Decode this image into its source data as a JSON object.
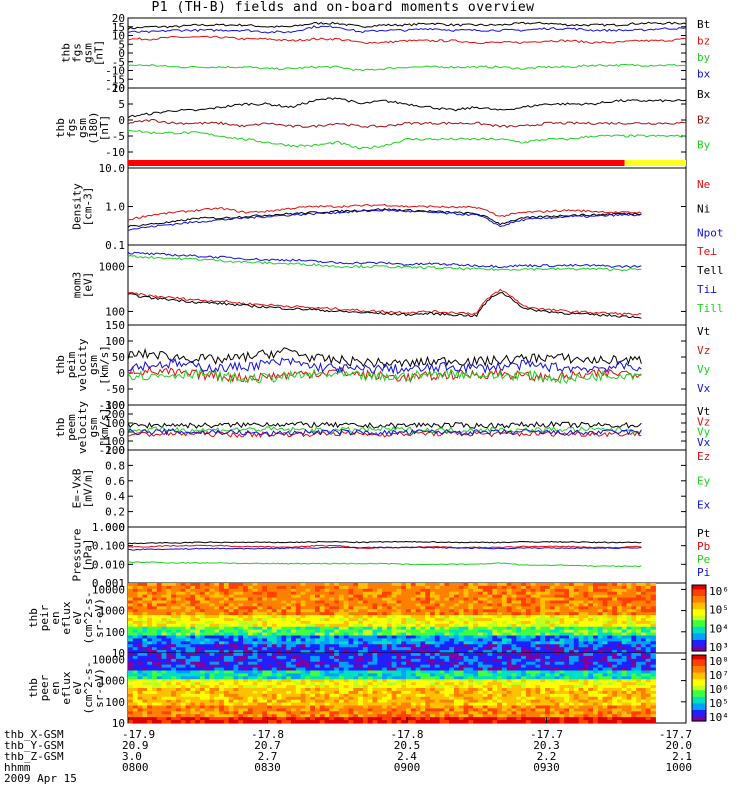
{
  "title": "P1 (TH-B) fields and on-board moments overview",
  "colors": {
    "black": "#000000",
    "red": "#e01010",
    "green": "#20d020",
    "blue": "#1010e0",
    "darkred": "#a01010",
    "yellow": "#ffff20"
  },
  "chart_data": [
    {
      "type": "line",
      "id": "fgs1",
      "ylabel_lines": [
        "thb",
        "fgs",
        "gsm",
        "[nT]"
      ],
      "ylim": [
        -20,
        20
      ],
      "yticks": [
        -20,
        -15,
        -10,
        -5,
        0,
        5,
        10,
        15,
        20
      ],
      "ytick_labels": [
        "-20",
        "-15",
        "-10",
        "-5",
        "0",
        "5",
        "10",
        "15",
        "20"
      ],
      "series": [
        {
          "name": "Bt",
          "color": "#000000",
          "base": [
            14,
            15,
            15,
            16,
            16,
            16,
            15,
            15,
            17,
            17,
            15,
            16,
            16,
            17,
            16,
            16,
            16,
            17,
            17,
            16,
            16,
            16,
            17,
            17,
            17
          ]
        },
        {
          "name": "bz",
          "color": "#e01010",
          "base": [
            8,
            8,
            9,
            9,
            9,
            8,
            8,
            7,
            8,
            8,
            6,
            6,
            7,
            7,
            7,
            6,
            6,
            6,
            7,
            7,
            6,
            6,
            7,
            7,
            8
          ]
        },
        {
          "name": "by",
          "color": "#20d020",
          "base": [
            -7,
            -7,
            -8,
            -8,
            -8,
            -8,
            -9,
            -9,
            -8,
            -8,
            -10,
            -9,
            -8,
            -8,
            -8,
            -8,
            -8,
            -9,
            -8,
            -8,
            -7,
            -7,
            -7,
            -7,
            -7
          ]
        },
        {
          "name": "bx",
          "color": "#1010e0",
          "base": [
            12,
            12,
            13,
            13,
            13,
            13,
            12,
            12,
            15,
            15,
            12,
            13,
            13,
            14,
            13,
            13,
            13,
            13,
            14,
            14,
            13,
            13,
            13,
            14,
            14
          ]
        }
      ]
    },
    {
      "type": "line",
      "id": "fgs2",
      "ylabel_lines": [
        "thb",
        "fgs",
        "gsm",
        "(180)",
        "[nT]"
      ],
      "ylim": [
        -15,
        10
      ],
      "yticks": [
        -10,
        -5,
        0,
        5,
        10
      ],
      "ytick_labels": [
        "-10",
        "-5",
        "0",
        "5",
        "10"
      ],
      "series": [
        {
          "name": "Bx",
          "color": "#000000",
          "base": [
            1,
            2,
            3,
            3,
            4,
            5,
            5,
            4,
            6,
            7,
            5,
            6,
            5,
            4,
            3,
            4,
            3,
            4,
            5,
            5,
            5,
            6,
            6,
            6,
            6
          ]
        },
        {
          "name": "Bz",
          "color": "#a01010",
          "base": [
            -1,
            0,
            -1,
            -1,
            -1,
            -2,
            -1,
            -2,
            -2,
            -1,
            -2,
            -2,
            -1,
            -1,
            -1,
            -1,
            -2,
            -2,
            -1,
            -1,
            -1,
            -1,
            -1,
            -1,
            -1
          ]
        },
        {
          "name": "By",
          "color": "#20d020",
          "base": [
            -3,
            -4,
            -4,
            -4,
            -5,
            -6,
            -7,
            -8,
            -8,
            -7,
            -9,
            -8,
            -6,
            -6,
            -6,
            -6,
            -6,
            -7,
            -6,
            -6,
            -5,
            -5,
            -5,
            -5,
            -5
          ]
        }
      ]
    },
    {
      "type": "line",
      "id": "density",
      "log": true,
      "ylabel_lines": [
        "Density",
        "[cm-3]"
      ],
      "ylim": [
        0.1,
        10
      ],
      "yticks": [
        0.1,
        1.0,
        10.0
      ],
      "ytick_labels": [
        "0.1",
        "1.0",
        "10.0"
      ],
      "series": [
        {
          "name": "Ne",
          "color": "#e01010",
          "base": [
            0.45,
            0.6,
            0.7,
            0.8,
            0.9,
            0.7,
            0.75,
            0.9,
            1.0,
            1.0,
            1.05,
            1.1,
            1.0,
            1.0,
            0.95,
            0.95,
            0.55,
            0.7,
            0.75,
            0.8,
            0.75,
            0.7,
            0.7,
            0.7,
            0.7
          ]
        },
        {
          "name": "Ni",
          "color": "#000000",
          "base": [
            0.3,
            0.35,
            0.4,
            0.5,
            0.5,
            0.55,
            0.6,
            0.65,
            0.7,
            0.75,
            0.8,
            0.85,
            0.8,
            0.75,
            0.7,
            0.65,
            0.35,
            0.5,
            0.55,
            0.6,
            0.6,
            0.65,
            0.65,
            0.7,
            0.7
          ]
        },
        {
          "name": "Npot",
          "color": "#1010e0",
          "base": [
            0.25,
            0.3,
            0.35,
            0.4,
            0.45,
            0.5,
            0.55,
            0.6,
            0.65,
            0.7,
            0.75,
            0.8,
            0.75,
            0.7,
            0.65,
            0.6,
            0.3,
            0.45,
            0.5,
            0.55,
            0.55,
            0.6,
            0.6,
            0.65,
            0.65
          ]
        }
      ]
    },
    {
      "type": "line",
      "id": "temp",
      "log": true,
      "ylabel_lines": [
        "mom3",
        "[eV]"
      ],
      "ylim": [
        50,
        3000
      ],
      "yticks": [
        100,
        1000
      ],
      "ytick_labels": [
        "100",
        "1000"
      ],
      "series": [
        {
          "name": "Te⊥",
          "color": "#e01010",
          "base": [
            260,
            220,
            200,
            180,
            170,
            150,
            140,
            130,
            120,
            115,
            105,
            100,
            95,
            100,
            95,
            90,
            300,
            130,
            110,
            100,
            95,
            90,
            85,
            80,
            80
          ]
        },
        {
          "name": "Tell",
          "color": "#000000",
          "base": [
            240,
            200,
            180,
            160,
            150,
            135,
            125,
            115,
            110,
            100,
            95,
            90,
            85,
            90,
            85,
            80,
            270,
            115,
            100,
            90,
            85,
            80,
            75,
            70,
            70
          ]
        },
        {
          "name": "Ti⊥",
          "color": "#1010e0",
          "base": [
            2000,
            1900,
            1800,
            1700,
            1600,
            1500,
            1400,
            1400,
            1300,
            1200,
            1200,
            1200,
            1100,
            1150,
            1100,
            1050,
            1000,
            1050,
            1050,
            1050,
            1050,
            1000,
            1000,
            1000,
            1000
          ]
        },
        {
          "name": "Till",
          "color": "#20d020",
          "base": [
            1700,
            1600,
            1500,
            1450,
            1350,
            1250,
            1200,
            1150,
            1100,
            1000,
            1000,
            1000,
            950,
            950,
            900,
            880,
            850,
            880,
            880,
            880,
            880,
            860,
            850,
            850,
            850
          ]
        }
      ]
    },
    {
      "type": "line",
      "id": "peim",
      "ylabel_lines": [
        "thb",
        "peim",
        "velocity",
        "gsm",
        "[km/s]"
      ],
      "ylim": [
        -100,
        150
      ],
      "yticks": [
        -100,
        -50,
        0,
        50,
        100,
        150
      ],
      "ytick_labels": [
        "-100",
        "-50",
        "0",
        "50",
        "100",
        "150"
      ],
      "series": [
        {
          "name": "Vt",
          "color": "#000000",
          "base": [
            55,
            60,
            50,
            45,
            40,
            50,
            60,
            70,
            45,
            40,
            35,
            30,
            30,
            35,
            40,
            35,
            40,
            45,
            50,
            45,
            40,
            40,
            40,
            40,
            40
          ]
        },
        {
          "name": "Vz",
          "color": "#e01010",
          "base": [
            10,
            5,
            0,
            -5,
            -10,
            -15,
            -10,
            -5,
            0,
            5,
            -5,
            -10,
            -15,
            -10,
            -5,
            -5,
            0,
            -10,
            -15,
            -10,
            -5,
            0,
            0,
            5,
            5
          ]
        },
        {
          "name": "Vy",
          "color": "#20d020",
          "base": [
            -5,
            -10,
            -5,
            0,
            -10,
            -20,
            -15,
            -10,
            -5,
            -5,
            -10,
            -15,
            -10,
            -5,
            0,
            -5,
            -10,
            -5,
            -15,
            -20,
            -10,
            -5,
            -5,
            0,
            0
          ]
        },
        {
          "name": "Vx",
          "color": "#1010e0",
          "base": [
            20,
            25,
            30,
            20,
            15,
            20,
            30,
            35,
            20,
            15,
            10,
            15,
            10,
            15,
            20,
            15,
            20,
            25,
            20,
            15,
            15,
            20,
            20,
            20,
            20
          ]
        }
      ]
    },
    {
      "type": "line",
      "id": "peem",
      "ylabel_lines": [
        "thb",
        "peem",
        "velocity",
        "gsm",
        "[km/s]"
      ],
      "ylim": [
        -200,
        300
      ],
      "yticks": [
        -200,
        -100,
        0,
        100,
        200,
        300
      ],
      "ytick_labels": [
        "-200",
        "-100",
        "0",
        "100",
        "200",
        "300"
      ],
      "series": [
        {
          "name": "Vt",
          "color": "#000000",
          "base": [
            70,
            75,
            80,
            70,
            75,
            80,
            90,
            85,
            80,
            75,
            70,
            70,
            75,
            80,
            75,
            70,
            75,
            80,
            85,
            80,
            75,
            75,
            75,
            75,
            75
          ]
        },
        {
          "name": "Vz",
          "color": "#e01010",
          "base": [
            -20,
            -25,
            -20,
            -15,
            -25,
            -30,
            -25,
            -20,
            -20,
            -15,
            -20,
            -25,
            -20,
            -15,
            -20,
            -20,
            -25,
            -20,
            -15,
            -20,
            -20,
            -20,
            -20,
            -20,
            -20
          ]
        },
        {
          "name": "Vy",
          "color": "#20d020",
          "base": [
            20,
            25,
            30,
            20,
            25,
            30,
            30,
            25,
            20,
            20,
            25,
            30,
            25,
            20,
            20,
            25,
            25,
            20,
            25,
            30,
            25,
            25,
            20,
            20,
            20
          ]
        },
        {
          "name": "Vx",
          "color": "#1010e0",
          "base": [
            0,
            0,
            5,
            -5,
            0,
            -10,
            -20,
            -10,
            0,
            0,
            -5,
            -10,
            -5,
            0,
            0,
            -5,
            -5,
            0,
            -5,
            -10,
            -5,
            0,
            0,
            0,
            0
          ]
        }
      ]
    },
    {
      "type": "line",
      "id": "efield",
      "ylabel_lines": [
        "E=-VxB",
        "[mV/m]"
      ],
      "ylim": [
        0,
        1.0
      ],
      "yticks": [
        0,
        0.2,
        0.4,
        0.6,
        0.8,
        1.0
      ],
      "ytick_labels": [
        "0.0",
        "0.2",
        "0.4",
        "0.6",
        "0.8",
        "1.0"
      ],
      "series": [
        {
          "name": "Ez",
          "color": "#e01010",
          "base": []
        },
        {
          "name": "Ey",
          "color": "#20d020",
          "base": []
        },
        {
          "name": "Ex",
          "color": "#1010e0",
          "base": []
        }
      ]
    },
    {
      "type": "line",
      "id": "pressure",
      "log": true,
      "ylabel_lines": [
        "Pressure",
        "[nPa]"
      ],
      "ylim": [
        0.001,
        1.0
      ],
      "yticks": [
        0.001,
        0.01,
        0.1,
        1.0
      ],
      "ytick_labels": [
        "0.001",
        "0.010",
        "0.100",
        "1.000"
      ],
      "series": [
        {
          "name": "Pt",
          "color": "#000000",
          "base": [
            0.13,
            0.14,
            0.14,
            0.15,
            0.15,
            0.15,
            0.15,
            0.15,
            0.16,
            0.16,
            0.15,
            0.16,
            0.16,
            0.16,
            0.15,
            0.15,
            0.15,
            0.16,
            0.16,
            0.16,
            0.15,
            0.15,
            0.15,
            0.16,
            0.16
          ]
        },
        {
          "name": "Pb",
          "color": "#e01010",
          "base": [
            0.085,
            0.09,
            0.1,
            0.1,
            0.1,
            0.09,
            0.09,
            0.08,
            0.1,
            0.1,
            0.07,
            0.08,
            0.08,
            0.09,
            0.08,
            0.08,
            0.08,
            0.09,
            0.09,
            0.09,
            0.08,
            0.08,
            0.09,
            0.09,
            0.09
          ]
        },
        {
          "name": "Pe",
          "color": "#20d020",
          "base": [
            0.013,
            0.013,
            0.012,
            0.012,
            0.012,
            0.011,
            0.011,
            0.011,
            0.011,
            0.011,
            0.011,
            0.011,
            0.01,
            0.01,
            0.01,
            0.01,
            0.012,
            0.009,
            0.009,
            0.009,
            0.008,
            0.008,
            0.008,
            0.008,
            0.008
          ]
        },
        {
          "name": "Pi",
          "color": "#1010e0",
          "base": [
            0.06,
            0.065,
            0.065,
            0.07,
            0.07,
            0.07,
            0.07,
            0.075,
            0.075,
            0.08,
            0.08,
            0.08,
            0.08,
            0.08,
            0.075,
            0.075,
            0.07,
            0.075,
            0.075,
            0.075,
            0.075,
            0.075,
            0.075,
            0.075,
            0.075
          ]
        }
      ]
    },
    {
      "type": "heatmap",
      "id": "peir",
      "ylabel_lines": [
        "thb",
        "peir",
        "en",
        "eflux",
        "eV",
        "(cm^2-s-",
        "sr-eV)"
      ],
      "ylim": [
        10,
        20000
      ],
      "yticks": [
        10,
        100,
        1000,
        10000
      ],
      "ytick_labels": [
        "10",
        "100",
        "1000",
        "10000"
      ],
      "colorbar_labels": [
        "10⁶",
        "10⁵",
        "10⁴",
        "10³"
      ]
    },
    {
      "type": "heatmap",
      "id": "peer",
      "ylabel_lines": [
        "thb",
        "peer",
        "en",
        "eflux",
        "eV",
        "(cm^2-s-",
        "sr-eV)"
      ],
      "ylim": [
        10,
        20000
      ],
      "yticks": [
        10,
        100,
        1000,
        10000
      ],
      "ytick_labels": [
        "10",
        "100",
        "1000",
        "10000"
      ],
      "colorbar_labels": [
        "10⁸",
        "10⁷",
        "10⁶",
        "10⁵",
        "10⁴"
      ]
    }
  ],
  "footer": {
    "row_labels": [
      "thb_X-GSM",
      "thb_Y-GSM",
      "thb_Z-GSM",
      "hhmm",
      "2009 Apr 15"
    ],
    "columns": [
      {
        "x": "-17.9",
        "y": "20.9",
        "z": "3.0",
        "t": "0800"
      },
      {
        "x": "-17.8",
        "y": "20.7",
        "z": "2.7",
        "t": "0830"
      },
      {
        "x": "-17.8",
        "y": "20.5",
        "z": "2.4",
        "t": "0900"
      },
      {
        "x": "-17.7",
        "y": "20.3",
        "z": "2.2",
        "t": "0930"
      },
      {
        "x": "-17.7",
        "y": "20.0",
        "z": "2.1",
        "t": "1000"
      }
    ]
  }
}
